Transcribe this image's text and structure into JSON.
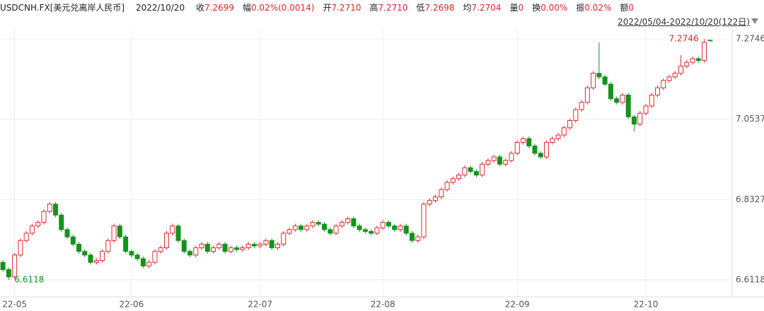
{
  "header": {
    "symbol": "USDCNH.FX[美元兑离岸人民币]",
    "date": "2022/10/20",
    "stats": [
      {
        "label": "收",
        "value": "7.2699"
      },
      {
        "label": "幅",
        "value": "0.02%(0.0014)"
      },
      {
        "label": "开",
        "value": "7.2710"
      },
      {
        "label": "高",
        "value": "7.2710"
      },
      {
        "label": "低",
        "value": "7.2698"
      },
      {
        "label": "均",
        "value": "7.2704"
      },
      {
        "label": "量",
        "value": "0"
      },
      {
        "label": "换",
        "value": "0.00%"
      },
      {
        "label": "振",
        "value": "0.02%"
      },
      {
        "label": "额",
        "value": "0"
      }
    ],
    "range": "2022/05/04-2022/10/20(122日)"
  },
  "chart_data": {
    "type": "candlestick",
    "categories": [
      null,
      null,
      "22-05",
      null,
      null,
      null,
      null,
      null,
      null,
      null,
      null,
      null,
      null,
      null,
      null,
      null,
      null,
      null,
      null,
      null,
      null,
      null,
      "22-06",
      null,
      null,
      null,
      null,
      null,
      null,
      null,
      null,
      null,
      null,
      null,
      null,
      null,
      null,
      null,
      null,
      null,
      null,
      null,
      null,
      null,
      "22-07",
      null,
      null,
      null,
      null,
      null,
      null,
      null,
      null,
      null,
      null,
      null,
      null,
      null,
      null,
      null,
      null,
      null,
      null,
      null,
      null,
      "22-08",
      null,
      null,
      null,
      null,
      null,
      null,
      null,
      null,
      null,
      null,
      null,
      null,
      null,
      null,
      null,
      null,
      null,
      null,
      null,
      null,
      null,
      null,
      "22-09",
      null,
      null,
      null,
      null,
      null,
      null,
      null,
      null,
      null,
      null,
      null,
      null,
      null,
      null,
      null,
      null,
      null,
      null,
      null,
      null,
      null,
      "22-10",
      null,
      null,
      null,
      null,
      null,
      null,
      null,
      null,
      null,
      null,
      null
    ],
    "open": [
      6.66,
      6.64,
      6.62,
      6.68,
      6.72,
      6.74,
      6.76,
      6.77,
      6.8,
      6.82,
      6.79,
      6.75,
      6.73,
      6.71,
      6.69,
      6.68,
      6.66,
      6.665,
      6.69,
      6.72,
      6.76,
      6.73,
      6.69,
      6.68,
      6.67,
      6.65,
      6.66,
      6.69,
      6.7,
      6.74,
      6.76,
      6.72,
      6.69,
      6.68,
      6.7,
      6.71,
      6.69,
      6.7,
      6.71,
      6.69,
      6.7,
      6.695,
      6.7,
      6.71,
      6.705,
      6.71,
      6.72,
      6.7,
      6.71,
      6.74,
      6.75,
      6.76,
      6.75,
      6.76,
      6.77,
      6.765,
      6.75,
      6.74,
      6.76,
      6.77,
      6.78,
      6.76,
      6.75,
      6.745,
      6.74,
      6.755,
      6.77,
      6.76,
      6.75,
      6.76,
      6.74,
      6.72,
      6.73,
      6.82,
      6.83,
      6.84,
      6.86,
      6.88,
      6.89,
      6.9,
      6.92,
      6.91,
      6.9,
      6.93,
      6.94,
      6.95,
      6.93,
      6.94,
      6.96,
      6.99,
      7.0,
      6.98,
      6.96,
      6.95,
      6.99,
      7.0,
      7.01,
      7.03,
      7.05,
      7.08,
      7.1,
      7.14,
      7.18,
      7.17,
      7.15,
      7.11,
      7.1,
      7.12,
      7.06,
      7.04,
      7.07,
      7.09,
      7.12,
      7.14,
      7.16,
      7.17,
      7.18,
      7.2,
      7.21,
      7.22,
      7.215,
      7.271
    ],
    "high": [
      6.666,
      6.646,
      6.686,
      6.726,
      6.746,
      6.766,
      6.776,
      6.806,
      6.826,
      6.826,
      6.796,
      6.756,
      6.736,
      6.716,
      6.696,
      6.686,
      6.671,
      6.696,
      6.726,
      6.766,
      6.766,
      6.736,
      6.696,
      6.686,
      6.676,
      6.666,
      6.696,
      6.706,
      6.746,
      6.766,
      6.766,
      6.726,
      6.696,
      6.706,
      6.716,
      6.716,
      6.706,
      6.716,
      6.716,
      6.706,
      6.706,
      6.706,
      6.716,
      6.716,
      6.716,
      6.726,
      6.726,
      6.716,
      6.746,
      6.756,
      6.766,
      6.766,
      6.766,
      6.776,
      6.776,
      6.771,
      6.756,
      6.766,
      6.776,
      6.786,
      6.786,
      6.766,
      6.756,
      6.751,
      6.761,
      6.776,
      6.776,
      6.766,
      6.766,
      6.766,
      6.746,
      6.736,
      6.826,
      6.836,
      6.846,
      6.866,
      6.886,
      6.896,
      6.906,
      6.926,
      6.926,
      6.916,
      6.936,
      6.946,
      6.956,
      6.956,
      6.946,
      6.966,
      6.996,
      7.006,
      7.006,
      6.986,
      6.966,
      6.996,
      7.006,
      7.016,
      7.036,
      7.056,
      7.086,
      7.106,
      7.146,
      7.186,
      7.265,
      7.176,
      7.156,
      7.116,
      7.126,
      7.126,
      7.066,
      7.076,
      7.096,
      7.126,
      7.146,
      7.166,
      7.176,
      7.186,
      7.23,
      7.216,
      7.226,
      7.226,
      7.2746,
      7.271
    ],
    "low": [
      6.634,
      6.6118,
      6.614,
      6.674,
      6.714,
      6.734,
      6.754,
      6.764,
      6.794,
      6.784,
      6.744,
      6.724,
      6.704,
      6.684,
      6.674,
      6.654,
      6.654,
      6.659,
      6.684,
      6.714,
      6.724,
      6.684,
      6.674,
      6.664,
      6.644,
      6.644,
      6.654,
      6.684,
      6.694,
      6.734,
      6.714,
      6.684,
      6.674,
      6.674,
      6.694,
      6.684,
      6.684,
      6.694,
      6.684,
      6.684,
      6.689,
      6.689,
      6.694,
      6.699,
      6.699,
      6.704,
      6.694,
      6.694,
      6.704,
      6.734,
      6.744,
      6.744,
      6.744,
      6.754,
      6.759,
      6.744,
      6.734,
      6.734,
      6.754,
      6.764,
      6.754,
      6.744,
      6.739,
      6.734,
      6.734,
      6.749,
      6.754,
      6.744,
      6.744,
      6.734,
      6.714,
      6.714,
      6.724,
      6.814,
      6.824,
      6.834,
      6.854,
      6.874,
      6.884,
      6.894,
      6.904,
      6.894,
      6.894,
      6.924,
      6.934,
      6.924,
      6.924,
      6.934,
      6.954,
      6.984,
      6.974,
      6.954,
      6.944,
      6.944,
      6.984,
      6.994,
      7.004,
      7.024,
      7.044,
      7.074,
      7.094,
      7.134,
      7.164,
      7.144,
      7.104,
      7.094,
      7.094,
      7.054,
      7.02,
      7.034,
      7.064,
      7.084,
      7.114,
      7.134,
      7.154,
      7.164,
      7.174,
      7.194,
      7.204,
      7.209,
      7.209,
      7.2698
    ],
    "close": [
      6.64,
      6.62,
      6.68,
      6.72,
      6.74,
      6.76,
      6.77,
      6.8,
      6.82,
      6.79,
      6.75,
      6.73,
      6.71,
      6.69,
      6.68,
      6.66,
      6.665,
      6.69,
      6.72,
      6.76,
      6.73,
      6.69,
      6.68,
      6.67,
      6.65,
      6.66,
      6.69,
      6.7,
      6.74,
      6.76,
      6.72,
      6.69,
      6.68,
      6.7,
      6.71,
      6.69,
      6.7,
      6.71,
      6.69,
      6.7,
      6.695,
      6.7,
      6.71,
      6.705,
      6.71,
      6.72,
      6.7,
      6.71,
      6.74,
      6.75,
      6.76,
      6.75,
      6.76,
      6.77,
      6.765,
      6.75,
      6.74,
      6.76,
      6.77,
      6.78,
      6.76,
      6.75,
      6.745,
      6.74,
      6.755,
      6.77,
      6.76,
      6.75,
      6.76,
      6.74,
      6.72,
      6.73,
      6.82,
      6.83,
      6.84,
      6.86,
      6.88,
      6.89,
      6.9,
      6.92,
      6.91,
      6.9,
      6.93,
      6.94,
      6.95,
      6.93,
      6.94,
      6.96,
      6.99,
      7.0,
      6.98,
      6.96,
      6.95,
      6.99,
      7.0,
      7.01,
      7.03,
      7.05,
      7.08,
      7.1,
      7.14,
      7.18,
      7.17,
      7.15,
      7.11,
      7.1,
      7.12,
      7.06,
      7.04,
      7.07,
      7.09,
      7.12,
      7.14,
      7.16,
      7.17,
      7.18,
      7.2,
      7.21,
      7.22,
      7.215,
      7.265,
      7.2699
    ],
    "ylim": [
      6.565,
      7.296
    ],
    "yticks": [
      6.6118,
      6.8327,
      7.0537,
      7.2746
    ],
    "grid": true,
    "up_color": "#e0282e",
    "down_color": "#14931c"
  }
}
